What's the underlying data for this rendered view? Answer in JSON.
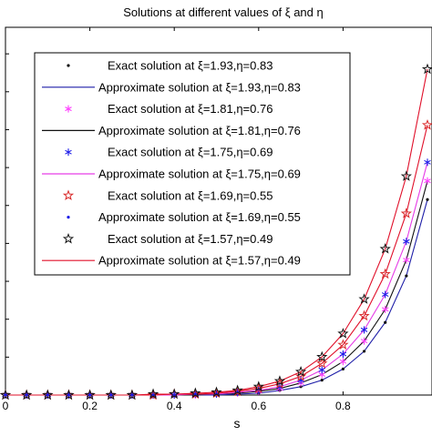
{
  "chart_data": {
    "type": "line",
    "title": "Solutions at different values of ξ and η",
    "xlabel": "s",
    "ylabel": "",
    "xlim": [
      0,
      1
    ],
    "x_ticks": [
      "0",
      "0.2",
      "0.4",
      "0.6",
      "0.8"
    ],
    "grid": false,
    "legend_position": "top-left",
    "colors": {
      "approx_1": "#1f1fa8",
      "approx_2": "#111111",
      "approx_3": "#e63de6",
      "approx_4": "#e0102a",
      "exact_1": "#111111",
      "exact_2": "#ff3dff",
      "exact_3": "#1a1ae8",
      "exact_4": "#d92a2a",
      "exact_5": "#111111"
    },
    "curve_params": [
      {
        "xi": 1.93,
        "eta": 0.83
      },
      {
        "xi": 1.81,
        "eta": 0.76
      },
      {
        "xi": 1.75,
        "eta": 0.69
      },
      {
        "xi": 1.69,
        "eta": 0.55
      },
      {
        "xi": 1.57,
        "eta": 0.49
      }
    ],
    "x": [
      0,
      0.05,
      0.1,
      0.15,
      0.2,
      0.25,
      0.3,
      0.35,
      0.4,
      0.45,
      0.5,
      0.55,
      0.6,
      0.65,
      0.7,
      0.75,
      0.8,
      0.85,
      0.9,
      0.95,
      1.0
    ],
    "series": [
      {
        "name": "Exact solution at ξ=1.93,η=0.83",
        "values": [
          0,
          0,
          0,
          0,
          0,
          0,
          0,
          0,
          0,
          0,
          0,
          0.01,
          0.02,
          0.05,
          0.09,
          0.16,
          0.28,
          0.47,
          0.78,
          1.28,
          2.1
        ]
      },
      {
        "name": "Approximate solution at ξ=1.93,η=0.83",
        "values": [
          0,
          0,
          0,
          0,
          0,
          0,
          0,
          0,
          0,
          0,
          0,
          0.01,
          0.02,
          0.05,
          0.09,
          0.16,
          0.28,
          0.47,
          0.78,
          1.28,
          2.1
        ]
      },
      {
        "name": "Exact solution at ξ=1.81,η=0.76",
        "values": [
          0,
          0,
          0,
          0,
          0,
          0,
          0,
          0,
          0,
          0,
          0.01,
          0.02,
          0.04,
          0.07,
          0.13,
          0.22,
          0.36,
          0.58,
          0.92,
          1.45,
          2.3
        ]
      },
      {
        "name": "Approximate solution at ξ=1.81,η=0.76",
        "values": [
          0,
          0,
          0,
          0,
          0,
          0,
          0,
          0,
          0,
          0,
          0.01,
          0.02,
          0.04,
          0.07,
          0.13,
          0.22,
          0.36,
          0.58,
          0.92,
          1.45,
          2.3
        ]
      },
      {
        "name": "Exact solution at ξ=1.75,η=0.69",
        "values": [
          0,
          0,
          0,
          0,
          0,
          0,
          0,
          0,
          0,
          0.01,
          0.01,
          0.03,
          0.05,
          0.09,
          0.16,
          0.27,
          0.44,
          0.7,
          1.08,
          1.65,
          2.5
        ]
      },
      {
        "name": "Approximate solution at ξ=1.75,η=0.69",
        "values": [
          0,
          0,
          0,
          0,
          0,
          0,
          0,
          0,
          0,
          0.01,
          0.01,
          0.03,
          0.05,
          0.09,
          0.16,
          0.27,
          0.44,
          0.7,
          1.08,
          1.65,
          2.5
        ]
      },
      {
        "name": "Exact solution at ξ=1.69,η=0.55",
        "values": [
          0,
          0,
          0,
          0,
          0,
          0,
          0,
          0,
          0.01,
          0.01,
          0.02,
          0.04,
          0.07,
          0.12,
          0.2,
          0.34,
          0.54,
          0.85,
          1.3,
          1.95,
          2.9
        ]
      },
      {
        "name": "Approximate solution at ξ=1.69,η=0.55",
        "values": [
          0,
          0,
          0,
          0,
          0,
          0,
          0,
          0,
          0.01,
          0.01,
          0.02,
          0.04,
          0.07,
          0.12,
          0.2,
          0.34,
          0.54,
          0.85,
          1.3,
          1.95,
          2.9
        ]
      },
      {
        "name": "Exact solution at ξ=1.57,η=0.49",
        "values": [
          0,
          0,
          0,
          0,
          0,
          0,
          0,
          0.01,
          0.01,
          0.02,
          0.03,
          0.05,
          0.09,
          0.15,
          0.25,
          0.41,
          0.66,
          1.03,
          1.57,
          2.35,
          3.5
        ]
      },
      {
        "name": "Approximate solution at ξ=1.57,η=0.49",
        "values": [
          0,
          0,
          0,
          0,
          0,
          0,
          0,
          0.01,
          0.01,
          0.02,
          0.03,
          0.05,
          0.09,
          0.15,
          0.25,
          0.41,
          0.66,
          1.03,
          1.57,
          2.35,
          3.5
        ]
      }
    ],
    "legend": [
      "Exact solution at ξ=1.93,η=0.83",
      "Approximate solution at ξ=1.93,η=0.83",
      "Exact solution at ξ=1.81,η=0.76",
      "Approximate solution at ξ=1.81,η=0.76",
      "Exact solution at ξ=1.75,η=0.69",
      "Approximate solution at ξ=1.75,η=0.69",
      "Exact solution at ξ=1.69,η=0.55",
      "Approximate solution at ξ=1.69,η=0.55",
      "Exact solution at ξ=1.57,η=0.49",
      "Approximate solution at ξ=1.57,η=0.49"
    ]
  }
}
